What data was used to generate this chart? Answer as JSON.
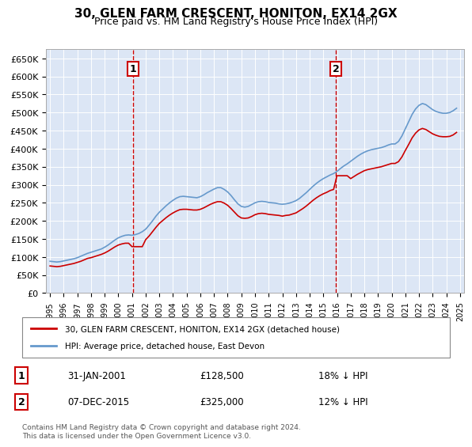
{
  "title": "30, GLEN FARM CRESCENT, HONITON, EX14 2GX",
  "subtitle": "Price paid vs. HM Land Registry's House Price Index (HPI)",
  "ylabel": "",
  "xlabel": "",
  "ylim": [
    0,
    675000
  ],
  "yticks": [
    0,
    50000,
    100000,
    150000,
    200000,
    250000,
    300000,
    350000,
    400000,
    450000,
    500000,
    550000,
    600000,
    650000
  ],
  "ytick_labels": [
    "£0",
    "£50K",
    "£100K",
    "£150K",
    "£200K",
    "£250K",
    "£300K",
    "£350K",
    "£400K",
    "£450K",
    "£500K",
    "£550K",
    "£600K",
    "£650K"
  ],
  "bg_color": "#dce6f5",
  "line_color_property": "#cc0000",
  "line_color_hpi": "#6699cc",
  "sale1_year": 2001.08,
  "sale1_price": 128500,
  "sale2_year": 2015.92,
  "sale2_price": 325000,
  "legend_property": "30, GLEN FARM CRESCENT, HONITON, EX14 2GX (detached house)",
  "legend_hpi": "HPI: Average price, detached house, East Devon",
  "annotation1_label": "1",
  "annotation1_date": "31-JAN-2001",
  "annotation1_price": "£128,500",
  "annotation1_hpi": "18% ↓ HPI",
  "annotation2_label": "2",
  "annotation2_date": "07-DEC-2015",
  "annotation2_price": "£325,000",
  "annotation2_hpi": "12% ↓ HPI",
  "footer": "Contains HM Land Registry data © Crown copyright and database right 2024.\nThis data is licensed under the Open Government Licence v3.0.",
  "hpi_x": [
    1995.0,
    1995.25,
    1995.5,
    1995.75,
    1996.0,
    1996.25,
    1996.5,
    1996.75,
    1997.0,
    1997.25,
    1997.5,
    1997.75,
    1998.0,
    1998.25,
    1998.5,
    1998.75,
    1999.0,
    1999.25,
    1999.5,
    1999.75,
    2000.0,
    2000.25,
    2000.5,
    2000.75,
    2001.0,
    2001.25,
    2001.5,
    2001.75,
    2002.0,
    2002.25,
    2002.5,
    2002.75,
    2003.0,
    2003.25,
    2003.5,
    2003.75,
    2004.0,
    2004.25,
    2004.5,
    2004.75,
    2005.0,
    2005.25,
    2005.5,
    2005.75,
    2006.0,
    2006.25,
    2006.5,
    2006.75,
    2007.0,
    2007.25,
    2007.5,
    2007.75,
    2008.0,
    2008.25,
    2008.5,
    2008.75,
    2009.0,
    2009.25,
    2009.5,
    2009.75,
    2010.0,
    2010.25,
    2010.5,
    2010.75,
    2011.0,
    2011.25,
    2011.5,
    2011.75,
    2012.0,
    2012.25,
    2012.5,
    2012.75,
    2013.0,
    2013.25,
    2013.5,
    2013.75,
    2014.0,
    2014.25,
    2014.5,
    2014.75,
    2015.0,
    2015.25,
    2015.5,
    2015.75,
    2016.0,
    2016.25,
    2016.5,
    2016.75,
    2017.0,
    2017.25,
    2017.5,
    2017.75,
    2018.0,
    2018.25,
    2018.5,
    2018.75,
    2019.0,
    2019.25,
    2019.5,
    2019.75,
    2020.0,
    2020.25,
    2020.5,
    2020.75,
    2021.0,
    2021.25,
    2021.5,
    2021.75,
    2022.0,
    2022.25,
    2022.5,
    2022.75,
    2023.0,
    2023.25,
    2023.5,
    2023.75,
    2024.0,
    2024.25,
    2024.5,
    2024.75
  ],
  "hpi_y": [
    88000,
    87000,
    86000,
    87000,
    89000,
    91000,
    93000,
    95000,
    98000,
    102000,
    106000,
    110000,
    113000,
    116000,
    119000,
    122000,
    127000,
    133000,
    140000,
    147000,
    153000,
    157000,
    160000,
    161000,
    160000,
    162000,
    165000,
    170000,
    177000,
    188000,
    200000,
    213000,
    224000,
    233000,
    242000,
    250000,
    257000,
    263000,
    267000,
    268000,
    267000,
    266000,
    265000,
    264000,
    267000,
    272000,
    278000,
    283000,
    288000,
    292000,
    292000,
    287000,
    280000,
    270000,
    258000,
    247000,
    240000,
    238000,
    240000,
    245000,
    250000,
    253000,
    254000,
    253000,
    251000,
    250000,
    249000,
    247000,
    246000,
    247000,
    249000,
    252000,
    256000,
    262000,
    270000,
    278000,
    287000,
    296000,
    304000,
    311000,
    317000,
    322000,
    327000,
    331000,
    337000,
    345000,
    352000,
    358000,
    365000,
    372000,
    379000,
    385000,
    390000,
    394000,
    397000,
    399000,
    401000,
    403000,
    406000,
    410000,
    413000,
    413000,
    420000,
    435000,
    455000,
    475000,
    495000,
    510000,
    520000,
    525000,
    522000,
    515000,
    508000,
    503000,
    500000,
    498000,
    498000,
    500000,
    505000,
    512000
  ],
  "prop_x": [
    1995.0,
    1995.25,
    1995.5,
    1995.75,
    1996.0,
    1996.25,
    1996.5,
    1996.75,
    1997.0,
    1997.25,
    1997.5,
    1997.75,
    1998.0,
    1998.25,
    1998.5,
    1998.75,
    1999.0,
    1999.25,
    1999.5,
    1999.75,
    2000.0,
    2000.25,
    2000.5,
    2000.75,
    2001.0,
    2001.25,
    2001.5,
    2001.75,
    2002.0,
    2002.25,
    2002.5,
    2002.75,
    2003.0,
    2003.25,
    2003.5,
    2003.75,
    2004.0,
    2004.25,
    2004.5,
    2004.75,
    2005.0,
    2005.25,
    2005.5,
    2005.75,
    2006.0,
    2006.25,
    2006.5,
    2006.75,
    2007.0,
    2007.25,
    2007.5,
    2007.75,
    2008.0,
    2008.25,
    2008.5,
    2008.75,
    2009.0,
    2009.25,
    2009.5,
    2009.75,
    2010.0,
    2010.25,
    2010.5,
    2010.75,
    2011.0,
    2011.25,
    2011.5,
    2011.75,
    2012.0,
    2012.25,
    2012.5,
    2012.75,
    2013.0,
    2013.25,
    2013.5,
    2013.75,
    2014.0,
    2014.25,
    2014.5,
    2014.75,
    2015.0,
    2015.25,
    2015.5,
    2015.75,
    2016.0,
    2016.25,
    2016.5,
    2016.75,
    2017.0,
    2017.25,
    2017.5,
    2017.75,
    2018.0,
    2018.25,
    2018.5,
    2018.75,
    2019.0,
    2019.25,
    2019.5,
    2019.75,
    2020.0,
    2020.25,
    2020.5,
    2020.75,
    2021.0,
    2021.25,
    2021.5,
    2021.75,
    2022.0,
    2022.25,
    2022.5,
    2022.75,
    2023.0,
    2023.25,
    2023.5,
    2023.75,
    2024.0,
    2024.25,
    2024.5,
    2024.75
  ],
  "prop_y": [
    75000,
    74000,
    73000,
    74000,
    76000,
    78000,
    80000,
    82000,
    85000,
    88000,
    92000,
    96000,
    98000,
    101000,
    104000,
    107000,
    111000,
    116000,
    122000,
    128000,
    133000,
    136000,
    138000,
    138000,
    128500,
    128500,
    128500,
    128500,
    148000,
    158000,
    170000,
    182000,
    193000,
    201000,
    209000,
    216000,
    222000,
    227000,
    231000,
    232000,
    232000,
    231000,
    230000,
    230000,
    232000,
    236000,
    241000,
    246000,
    250000,
    253000,
    253000,
    249000,
    243000,
    234000,
    224000,
    214000,
    208000,
    207000,
    208000,
    212000,
    217000,
    220000,
    221000,
    220000,
    218000,
    217000,
    216000,
    215000,
    213000,
    215000,
    216000,
    219000,
    222000,
    228000,
    234000,
    241000,
    249000,
    257000,
    264000,
    270000,
    275000,
    279000,
    284000,
    287000,
    325000,
    325000,
    325000,
    325000,
    317000,
    323000,
    329000,
    334000,
    339000,
    342000,
    344000,
    346000,
    348000,
    350000,
    353000,
    356000,
    359000,
    359000,
    364000,
    377000,
    395000,
    412000,
    430000,
    443000,
    452000,
    456000,
    453000,
    447000,
    441000,
    437000,
    434000,
    433000,
    433000,
    434000,
    438000,
    445000
  ]
}
